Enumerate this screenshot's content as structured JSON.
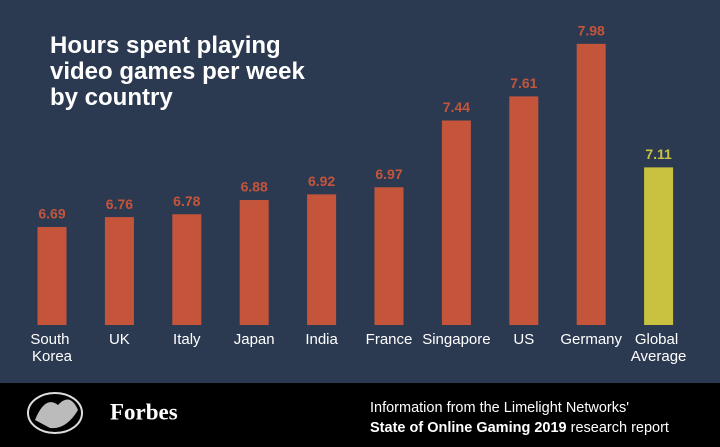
{
  "chart_data": {
    "type": "bar",
    "title": "Hours spent playing video games per week by country",
    "categories": [
      "South Korea",
      "UK",
      "Italy",
      "Japan",
      "India",
      "France",
      "Singapore",
      "US",
      "Germany",
      "Global Average"
    ],
    "values": [
      6.69,
      6.76,
      6.78,
      6.88,
      6.92,
      6.97,
      7.44,
      7.61,
      7.98,
      7.11
    ],
    "colors": [
      "#c4553b",
      "#c4553b",
      "#c4553b",
      "#c4553b",
      "#c4553b",
      "#c4553b",
      "#c4553b",
      "#c4553b",
      "#c4553b",
      "#c9c241"
    ],
    "ylim": [
      6,
      8
    ],
    "grid": false
  },
  "footer": {
    "brand": "Forbes",
    "source_start": "Information from the Limelight Networks'",
    "source_bold": "State of Online Gaming 2019",
    "source_end": "research report"
  }
}
